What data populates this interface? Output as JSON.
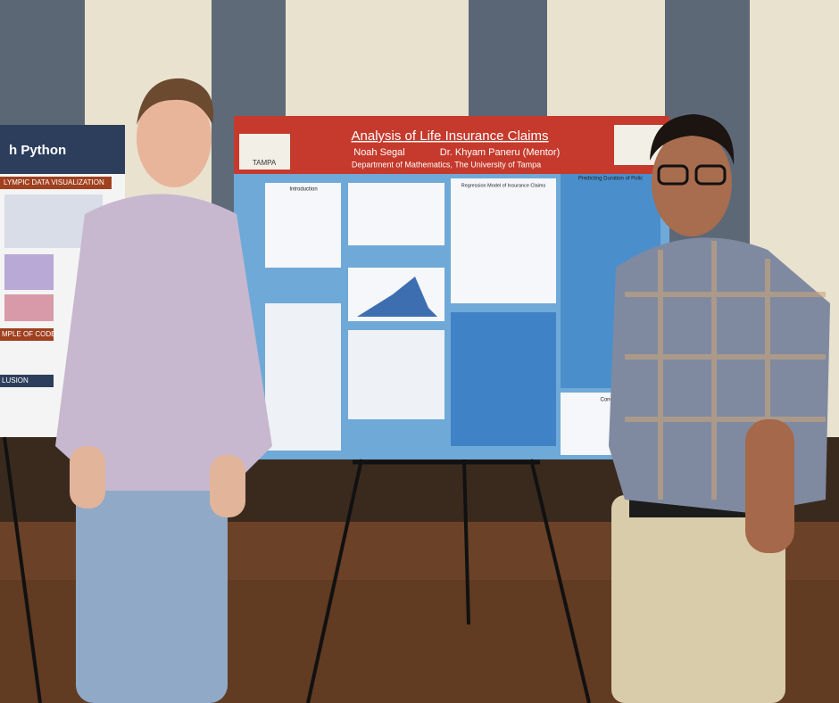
{
  "poster": {
    "title": "Analysis of Life Insurance Claims",
    "authors": [
      "Noah Segal",
      "Dr. Khyam Paneru (Mentor)"
    ],
    "department": "Department of Mathematics, The University of Tampa",
    "logo_text": "TAMPA",
    "sections": [
      "Introduction",
      "Regression Model of Insurance Claims",
      "Predicting Duration of Polic",
      "Conclusi"
    ]
  },
  "left_poster": {
    "title": "h Python",
    "sections": [
      "LYMPIC DATA VISUALIZATION",
      "MPLE OF CODE",
      "LUSION"
    ]
  }
}
